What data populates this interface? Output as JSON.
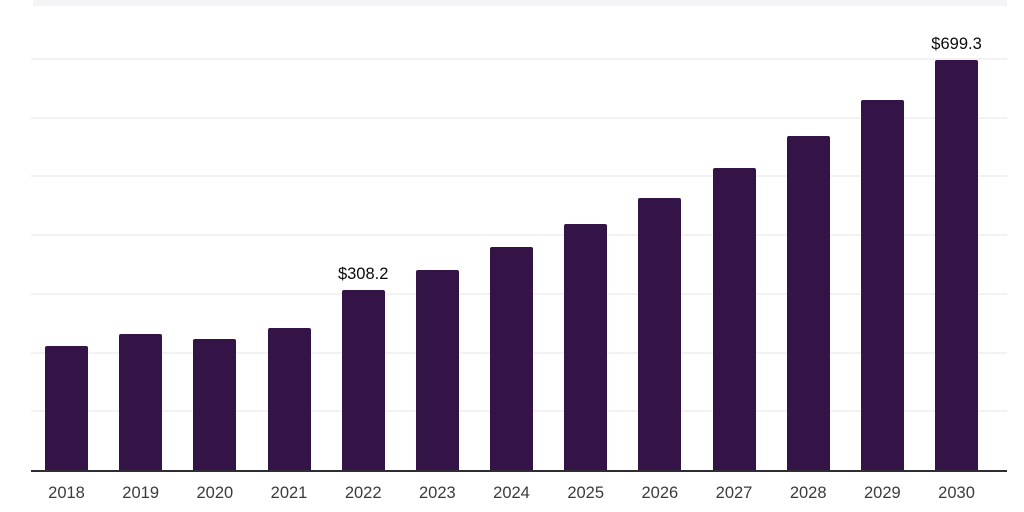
{
  "chart": {
    "colors": {
      "background": "#ffffff",
      "bar": "#341347",
      "axis_line": "#2d2d35",
      "gridline": "#f2f2f4",
      "top_band": "#f4f4f6",
      "tick_label": "#3b3b3b",
      "value_label": "#0b0b0b"
    }
  },
  "chart_data": {
    "type": "bar",
    "title": "",
    "xlabel": "",
    "ylabel": "",
    "categories": [
      "2018",
      "2019",
      "2020",
      "2021",
      "2022",
      "2023",
      "2024",
      "2025",
      "2026",
      "2027",
      "2028",
      "2029",
      "2030"
    ],
    "values": [
      212,
      234,
      225,
      244,
      308.2,
      342,
      381,
      421,
      464,
      516,
      571,
      632,
      699.3
    ],
    "data_labels": {
      "2022": "$308.2",
      "2030": "$699.3"
    },
    "currency_prefix": "$",
    "ylim": [
      0,
      800
    ],
    "gridline_interval": 100,
    "grid": "on",
    "legend": "none",
    "bar_color": "#341347"
  }
}
